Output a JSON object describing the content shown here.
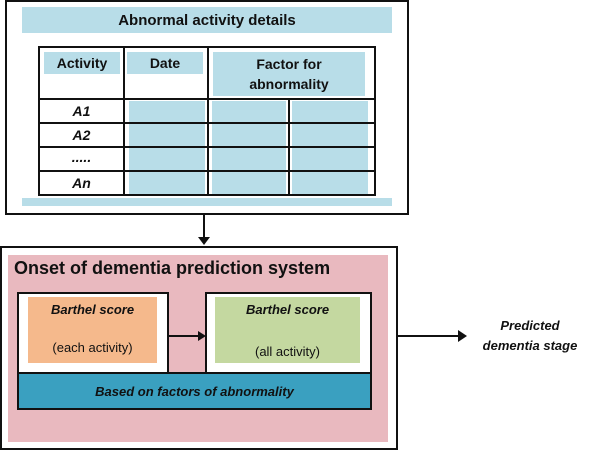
{
  "top_panel": {
    "title": "Abnormal activity details",
    "columns": [
      "Activity",
      "Date",
      "Factor for abnormality"
    ],
    "rows": [
      "A1",
      "A2",
      ".....",
      "An"
    ]
  },
  "bottom_panel": {
    "title": "Onset of dementia prediction system",
    "left_box": {
      "title": "Barthel score",
      "subtitle": "(each activity)"
    },
    "right_box": {
      "title": "Barthel score",
      "subtitle": "(all activity)"
    },
    "base": "Based on factors of abnormality"
  },
  "output": {
    "label_line1": "Predicted",
    "label_line2": "dementia stage"
  },
  "colors": {
    "light_blue": "#b8dde8",
    "pink": "#e9b9bf",
    "orange": "#f5b98c",
    "green": "#c4d8a0",
    "teal": "#3aa0c0"
  }
}
